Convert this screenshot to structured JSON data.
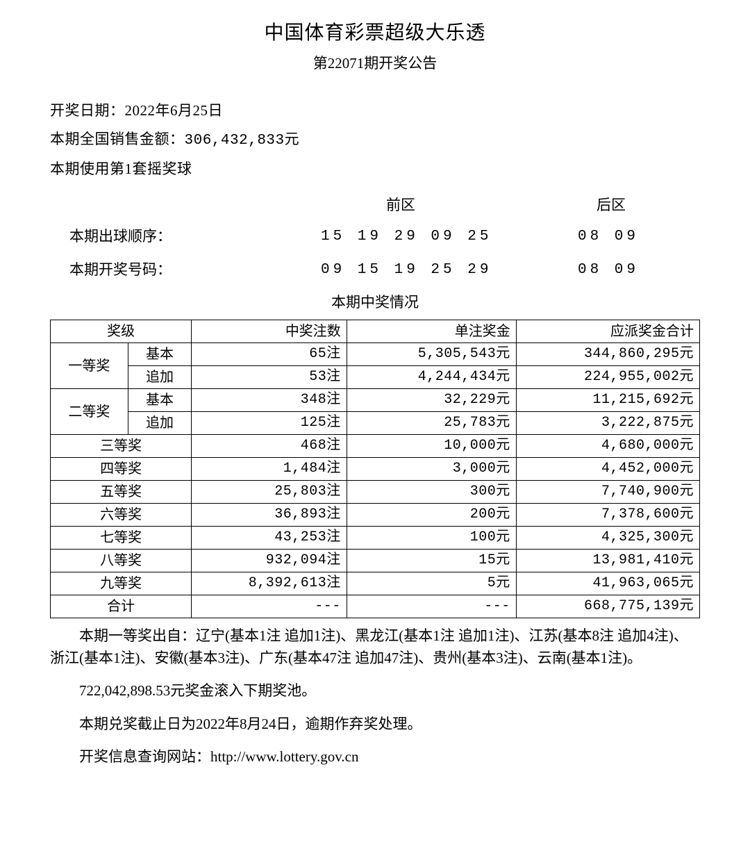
{
  "header": {
    "title": "中国体育彩票超级大乐透",
    "subtitle": "第22071期开奖公告"
  },
  "info": {
    "draw_date_label": "开奖日期：",
    "draw_date": "2022年6月25日",
    "sales_label": "本期全国销售金额：",
    "sales_amount": "306,432,833元",
    "ball_set": "本期使用第1套摇奖球"
  },
  "zones": {
    "front_label": "前区",
    "back_label": "后区"
  },
  "numbers": {
    "draw_order_label": "本期出球顺序：",
    "draw_order_front": "15 19 29 09 25",
    "draw_order_back": "08 09",
    "winning_label": "本期开奖号码：",
    "winning_front": "09 15 19 25 29",
    "winning_back": "08 09"
  },
  "table": {
    "title": "本期中奖情况",
    "columns": {
      "level": "奖级",
      "tickets": "中奖注数",
      "amount": "单注奖金",
      "total": "应派奖金合计"
    },
    "rows": [
      {
        "level": "一等奖",
        "sub": "基本",
        "tickets": "65注",
        "amount": "5,305,543元",
        "total": "344,860,295元"
      },
      {
        "level": "",
        "sub": "追加",
        "tickets": "53注",
        "amount": "4,244,434元",
        "total": "224,955,002元"
      },
      {
        "level": "二等奖",
        "sub": "基本",
        "tickets": "348注",
        "amount": "32,229元",
        "total": "11,215,692元"
      },
      {
        "level": "",
        "sub": "追加",
        "tickets": "125注",
        "amount": "25,783元",
        "total": "3,222,875元"
      },
      {
        "level": "三等奖",
        "tickets": "468注",
        "amount": "10,000元",
        "total": "4,680,000元"
      },
      {
        "level": "四等奖",
        "tickets": "1,484注",
        "amount": "3,000元",
        "total": "4,452,000元"
      },
      {
        "level": "五等奖",
        "tickets": "25,803注",
        "amount": "300元",
        "total": "7,740,900元"
      },
      {
        "level": "六等奖",
        "tickets": "36,893注",
        "amount": "200元",
        "total": "7,378,600元"
      },
      {
        "level": "七等奖",
        "tickets": "43,253注",
        "amount": "100元",
        "total": "4,325,300元"
      },
      {
        "level": "八等奖",
        "tickets": "932,094注",
        "amount": "15元",
        "total": "13,981,410元"
      },
      {
        "level": "九等奖",
        "tickets": "8,392,613注",
        "amount": "5元",
        "total": "41,963,065元"
      },
      {
        "level": "合计",
        "tickets": "---",
        "amount": "---",
        "total": "668,775,139元"
      }
    ]
  },
  "notes": {
    "winners": "本期一等奖出自：辽宁(基本1注 追加1注)、黑龙江(基本1注 追加1注)、江苏(基本8注 追加4注)、浙江(基本1注)、安徽(基本3注)、广东(基本47注 追加47注)、贵州(基本3注)、云南(基本1注)。",
    "rollover": "722,042,898.53元奖金滚入下期奖池。",
    "deadline": "本期兑奖截止日为2022年8月24日，逾期作弃奖处理。",
    "website": "开奖信息查询网站：http://www.lottery.gov.cn"
  }
}
